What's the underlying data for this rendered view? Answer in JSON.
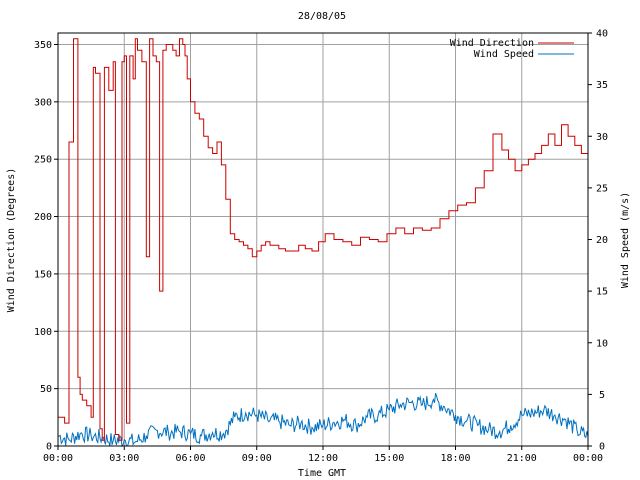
{
  "chart_data": {
    "type": "line",
    "title": "28/08/05",
    "xlabel": "Time GMT",
    "ylabel_left": "Wind Direction (Degrees)",
    "ylabel_right": "Wind Speed (m/s)",
    "x_ticks": [
      "00:00",
      "03:00",
      "06:00",
      "09:00",
      "12:00",
      "15:00",
      "18:00",
      "21:00",
      "00:00"
    ],
    "x_range_hours": [
      0,
      24
    ],
    "y_left_range": [
      0,
      360
    ],
    "y_left_ticks": [
      0,
      50,
      100,
      150,
      200,
      250,
      300,
      350
    ],
    "y_right_range": [
      0,
      40
    ],
    "y_right_ticks": [
      0,
      5,
      10,
      15,
      20,
      25,
      30,
      35,
      40
    ],
    "grid": true,
    "legend_position": "top-right",
    "colors": {
      "direction": "#cc0000",
      "speed": "#0070c0",
      "grid": "#a0a0a0"
    },
    "series": [
      {
        "name": "Wind Direction",
        "axis": "left",
        "x_hours": [
          0.0,
          0.3,
          0.5,
          0.7,
          0.9,
          1.0,
          1.1,
          1.3,
          1.5,
          1.6,
          1.7,
          1.9,
          2.0,
          2.1,
          2.3,
          2.5,
          2.6,
          2.75,
          2.9,
          3.0,
          3.1,
          3.25,
          3.4,
          3.5,
          3.6,
          3.8,
          4.0,
          4.15,
          4.3,
          4.45,
          4.6,
          4.75,
          4.9,
          5.0,
          5.2,
          5.35,
          5.5,
          5.65,
          5.75,
          5.85,
          6.0,
          6.2,
          6.4,
          6.6,
          6.8,
          7.0,
          7.2,
          7.4,
          7.6,
          7.8,
          8.0,
          8.2,
          8.4,
          8.6,
          8.8,
          9.0,
          9.2,
          9.4,
          9.6,
          9.8,
          10.0,
          10.3,
          10.6,
          10.9,
          11.2,
          11.5,
          11.8,
          12.1,
          12.5,
          12.9,
          13.3,
          13.7,
          14.1,
          14.5,
          14.9,
          15.3,
          15.7,
          16.1,
          16.5,
          16.9,
          17.3,
          17.7,
          18.1,
          18.5,
          18.9,
          19.3,
          19.7,
          20.1,
          20.4,
          20.7,
          21.0,
          21.3,
          21.6,
          21.9,
          22.2,
          22.5,
          22.8,
          23.1,
          23.4,
          23.7,
          24.0
        ],
        "values": [
          25,
          20,
          265,
          355,
          60,
          45,
          40,
          35,
          25,
          330,
          325,
          15,
          5,
          330,
          310,
          335,
          10,
          5,
          335,
          340,
          20,
          340,
          320,
          355,
          345,
          335,
          165,
          355,
          340,
          335,
          135,
          345,
          350,
          350,
          345,
          340,
          355,
          350,
          340,
          320,
          300,
          290,
          285,
          270,
          260,
          255,
          265,
          245,
          215,
          185,
          180,
          178,
          175,
          172,
          165,
          170,
          175,
          178,
          175,
          175,
          172,
          170,
          170,
          175,
          172,
          170,
          178,
          185,
          180,
          178,
          175,
          182,
          180,
          178,
          185,
          190,
          185,
          190,
          188,
          190,
          198,
          205,
          210,
          212,
          225,
          240,
          272,
          258,
          250,
          240,
          245,
          250,
          255,
          262,
          272,
          262,
          280,
          270,
          262,
          255,
          245
        ]
      },
      {
        "name": "Wind Speed",
        "axis": "right",
        "x_hours": [
          0.0,
          0.5,
          1.0,
          1.5,
          2.0,
          2.5,
          3.0,
          3.5,
          4.0,
          4.5,
          5.0,
          5.5,
          6.0,
          6.5,
          7.0,
          7.5,
          8.0,
          8.5,
          9.0,
          9.5,
          10.0,
          10.5,
          11.0,
          11.5,
          12.0,
          12.5,
          13.0,
          13.5,
          14.0,
          14.5,
          15.0,
          15.5,
          16.0,
          16.5,
          17.0,
          17.5,
          18.0,
          18.5,
          19.0,
          19.5,
          20.0,
          20.5,
          21.0,
          21.5,
          22.0,
          22.5,
          23.0,
          23.5,
          24.0
        ],
        "values": [
          1.0,
          0.6,
          1.2,
          1.0,
          0.8,
          0.5,
          0.6,
          0.4,
          1.0,
          1.5,
          1.3,
          1.4,
          1.2,
          1.0,
          1.3,
          1.2,
          2.8,
          3.2,
          3.0,
          2.5,
          2.4,
          2.0,
          2.2,
          1.8,
          2.0,
          2.3,
          2.5,
          2.0,
          2.8,
          3.0,
          3.5,
          4.0,
          4.2,
          4.0,
          4.5,
          3.8,
          3.0,
          2.4,
          2.0,
          1.6,
          1.4,
          2.0,
          3.0,
          3.2,
          3.5,
          3.0,
          2.5,
          1.5,
          0.9
        ]
      }
    ]
  }
}
